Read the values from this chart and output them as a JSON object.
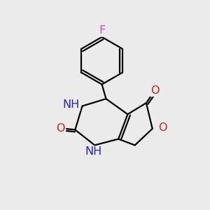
{
  "background_color": "#ebebeb",
  "bond_color": "#000000",
  "bond_width": 1.6,
  "atom_colors": {
    "F": "#cc44cc",
    "N": "#2222cc",
    "O": "#cc2020",
    "H": "#558888"
  },
  "font_size": 11.5
}
